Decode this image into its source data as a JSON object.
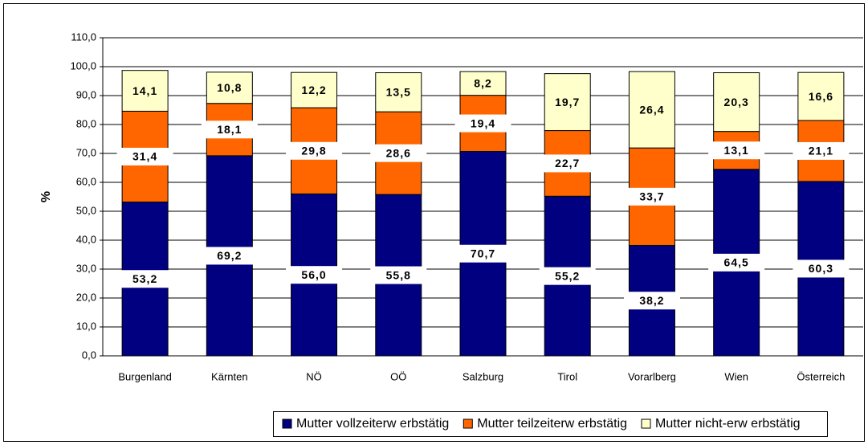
{
  "chart_data": {
    "type": "stacked_bar",
    "y_label": "%",
    "categories": [
      "Burgenland",
      "Kärnten",
      "NÖ",
      "OÖ",
      "Salzburg",
      "Tirol",
      "Vorarlberg",
      "Wien",
      "Österreich"
    ],
    "series": [
      {
        "name": "Mutter vollzeiterw erbstätig",
        "color": "#000080",
        "values": [
          53.2,
          69.2,
          56.0,
          55.8,
          70.7,
          55.2,
          38.2,
          64.5,
          60.3
        ],
        "value_labels": [
          "53,2",
          "69,2",
          "56,0",
          "55,8",
          "70,7",
          "55,2",
          "38,2",
          "64,5",
          "60,3"
        ]
      },
      {
        "name": "Mutter teilzeiterw erbstätig",
        "color": "#ff6600",
        "values": [
          31.4,
          18.1,
          29.8,
          28.6,
          19.4,
          22.7,
          33.7,
          13.1,
          21.1
        ],
        "value_labels": [
          "31,4",
          "18,1",
          "29,8",
          "28,6",
          "19,4",
          "22,7",
          "33,7",
          "13,1",
          "21,1"
        ]
      },
      {
        "name": "Mutter nicht-erw erbstätig",
        "color": "#ffffcc",
        "values": [
          14.1,
          10.8,
          12.2,
          13.5,
          8.2,
          19.7,
          26.4,
          20.3,
          16.6
        ],
        "value_labels": [
          "14,1",
          "10,8",
          "12,2",
          "13,5",
          "8,2",
          "19,7",
          "26,4",
          "20,3",
          "16,6"
        ]
      }
    ],
    "ylim": [
      0,
      110
    ],
    "yticks": [
      {
        "value": 0,
        "label": "0,0"
      },
      {
        "value": 10,
        "label": "10,0"
      },
      {
        "value": 20,
        "label": "20,0"
      },
      {
        "value": 30,
        "label": "30,0"
      },
      {
        "value": 40,
        "label": "40,0"
      },
      {
        "value": 50,
        "label": "50,0"
      },
      {
        "value": 60,
        "label": "60,0"
      },
      {
        "value": 70,
        "label": "70,0"
      },
      {
        "value": 80,
        "label": "80,0"
      },
      {
        "value": 90,
        "label": "90,0"
      },
      {
        "value": 100,
        "label": "100,0"
      },
      {
        "value": 110,
        "label": "110,0"
      }
    ],
    "grid": true,
    "legend": "bottom"
  }
}
